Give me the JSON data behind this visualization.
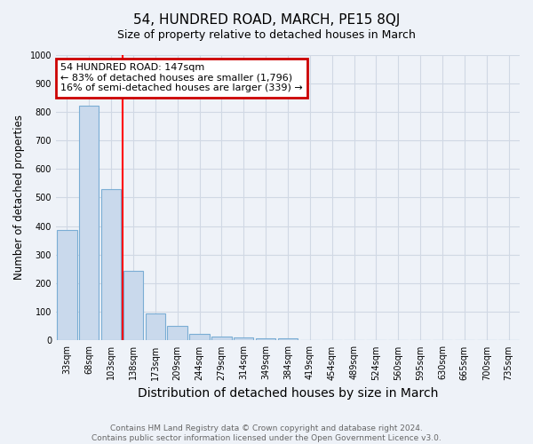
{
  "title": "54, HUNDRED ROAD, MARCH, PE15 8QJ",
  "subtitle": "Size of property relative to detached houses in March",
  "xlabel": "Distribution of detached houses by size in March",
  "ylabel": "Number of detached properties",
  "categories": [
    "33sqm",
    "68sqm",
    "103sqm",
    "138sqm",
    "173sqm",
    "209sqm",
    "244sqm",
    "279sqm",
    "314sqm",
    "349sqm",
    "384sqm",
    "419sqm",
    "454sqm",
    "489sqm",
    "524sqm",
    "560sqm",
    "595sqm",
    "630sqm",
    "665sqm",
    "700sqm",
    "735sqm"
  ],
  "values": [
    385,
    820,
    530,
    245,
    95,
    50,
    22,
    15,
    12,
    8,
    8,
    0,
    0,
    0,
    0,
    0,
    0,
    0,
    0,
    0,
    0
  ],
  "bar_color": "#c9d9ec",
  "bar_edge_color": "#7aadd4",
  "grid_color": "#d0d8e4",
  "background_color": "#eef2f8",
  "red_line_index": 3,
  "annotation_text": "54 HUNDRED ROAD: 147sqm\n← 83% of detached houses are smaller (1,796)\n16% of semi-detached houses are larger (339) →",
  "annotation_box_color": "#ffffff",
  "annotation_box_edge_color": "#cc0000",
  "ylim": [
    0,
    1000
  ],
  "yticks": [
    0,
    100,
    200,
    300,
    400,
    500,
    600,
    700,
    800,
    900,
    1000
  ],
  "footer": "Contains HM Land Registry data © Crown copyright and database right 2024.\nContains public sector information licensed under the Open Government Licence v3.0.",
  "title_fontsize": 11,
  "subtitle_fontsize": 9,
  "xlabel_fontsize": 10,
  "ylabel_fontsize": 8.5,
  "tick_fontsize": 7,
  "annotation_fontsize": 8,
  "footer_fontsize": 6.5
}
